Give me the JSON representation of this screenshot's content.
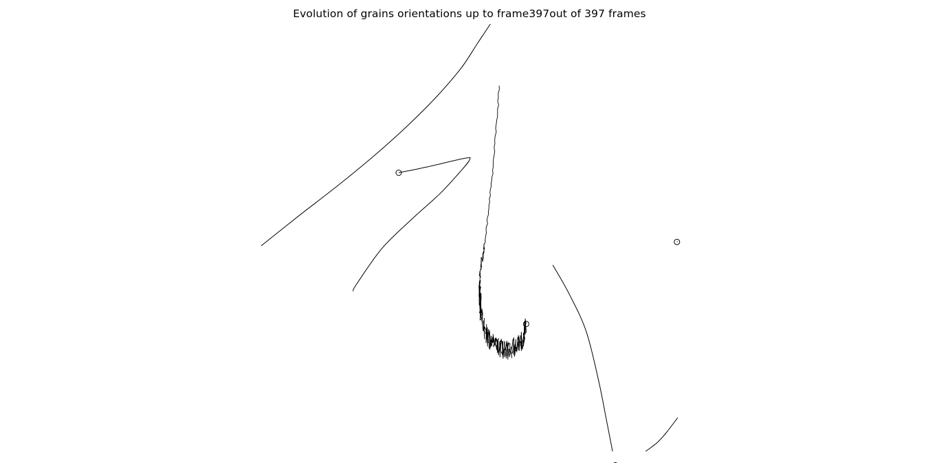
{
  "chart_data": {
    "type": "line",
    "title": "Evolution of grains orientations up to frame397out of 397 frames",
    "axes_visible": false,
    "grid": false,
    "legend": "none",
    "xlim": [
      0,
      10
    ],
    "ylim": [
      0,
      10
    ],
    "line_color": "#000000",
    "series": [
      {
        "marker": "none",
        "x": [
          0.0,
          0.9,
          1.8,
          2.7,
          3.5,
          4.2,
          4.8,
          5.2,
          5.5,
          5.7
        ],
        "y": [
          4.81,
          5.51,
          6.19,
          6.91,
          7.61,
          8.29,
          8.97,
          9.56,
          10.0,
          10.3
        ]
      },
      {
        "marker": "end-circle",
        "x": [
          2.2,
          2.3,
          2.9,
          3.6,
          4.3,
          4.8,
          5.0,
          4.9,
          4.0,
          3.3
        ],
        "y": [
          3.75,
          3.93,
          4.75,
          5.42,
          6.04,
          6.57,
          6.82,
          6.86,
          6.66,
          6.52
        ]
      },
      {
        "marker": "end-circle",
        "noisy": true,
        "noise_seed": 7,
        "noise_spread": 0.42,
        "x": [
          5.72,
          5.56,
          5.38,
          5.3,
          5.25,
          5.25,
          5.26,
          5.32,
          5.45,
          5.6,
          5.75,
          5.9,
          6.05,
          6.2,
          6.3,
          6.36
        ],
        "y": [
          8.56,
          6.57,
          4.96,
          4.48,
          4.15,
          3.6,
          3.3,
          2.98,
          2.65,
          2.5,
          2.41,
          2.38,
          2.42,
          2.52,
          2.62,
          2.98
        ]
      },
      {
        "marker": "end-circle",
        "x": [
          7.0,
          7.4,
          7.8,
          8.1,
          8.3,
          8.5
        ],
        "y": [
          4.36,
          3.67,
          2.81,
          1.65,
          0.67,
          -0.33
        ]
      },
      {
        "marker": "none",
        "x": [
          8.72,
          9.1,
          9.5,
          9.75,
          10.0
        ],
        "y": [
          -0.45,
          -0.1,
          0.2,
          0.47,
          0.79
        ]
      },
      {
        "marker": "end-circle",
        "x": [
          10.0,
          9.98
        ],
        "y": [
          4.91,
          4.9
        ]
      }
    ]
  }
}
